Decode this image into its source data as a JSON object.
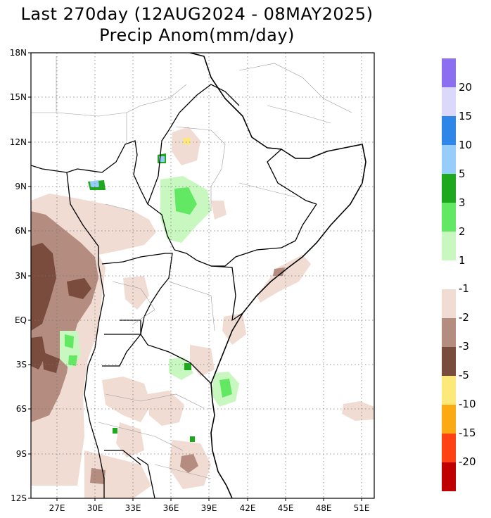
{
  "title": {
    "line1": "Last 270day (12AUG2024 - 08MAY2025)",
    "line2": "Precip Anom(mm/day)"
  },
  "map": {
    "lon_range": [
      25,
      52
    ],
    "lat_range": [
      -12,
      18
    ],
    "lat_ticks": [
      "18N",
      "15N",
      "12N",
      "9N",
      "6N",
      "3N",
      "EQ",
      "3S",
      "6S",
      "9S",
      "12S"
    ],
    "lon_ticks": [
      "27E",
      "30E",
      "33E",
      "36E",
      "39E",
      "42E",
      "45E",
      "48E",
      "51E"
    ],
    "grid": "dotted"
  },
  "colorbar": {
    "positive": [
      {
        "label": "20",
        "color": "#8b6ff0"
      },
      {
        "label": "15",
        "color": "#dcd8fb"
      },
      {
        "label": "10",
        "color": "#2e86e8"
      },
      {
        "label": "5",
        "color": "#96cdfa"
      },
      {
        "label": "3",
        "color": "#1ea81e"
      },
      {
        "label": "2",
        "color": "#62e862"
      },
      {
        "label": "1",
        "color": "#c8f8c0"
      }
    ],
    "negative": [
      {
        "label": "-1",
        "color": "#f0dcd2"
      },
      {
        "label": "-2",
        "color": "#b48c80"
      },
      {
        "label": "-3",
        "color": "#7a4c3e"
      },
      {
        "label": "-5",
        "color": "#fde87a"
      },
      {
        "label": "-10",
        "color": "#fcaa14"
      },
      {
        "label": "-15",
        "color": "#ff4114"
      },
      {
        "label": "-20",
        "color": "#c00000"
      }
    ]
  }
}
